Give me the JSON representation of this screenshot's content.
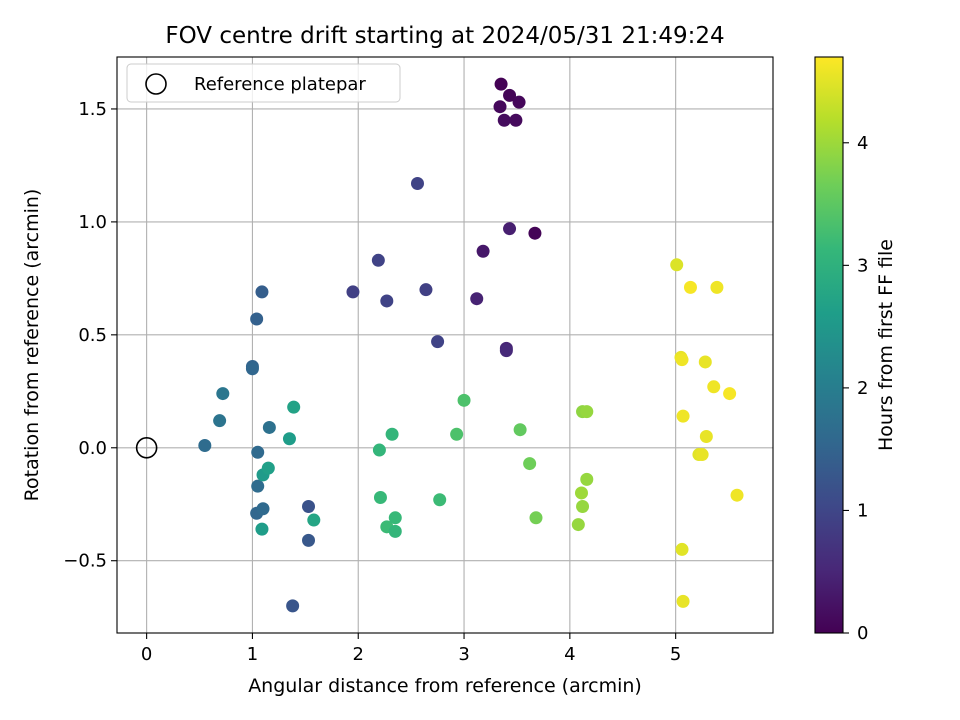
{
  "chart_data": {
    "type": "scatter",
    "title": "FOV centre drift starting at 2024/05/31 21:49:24",
    "xlabel": "Angular distance from reference (arcmin)",
    "ylabel": "Rotation from reference (arcmin)",
    "xlim": [
      -0.28,
      5.92
    ],
    "ylim": [
      -0.82,
      1.73
    ],
    "xticks": [
      0,
      1,
      2,
      3,
      4,
      5
    ],
    "yticks": [
      -0.5,
      0.0,
      0.5,
      1.0,
      1.5
    ],
    "ytick_labels": [
      "−0.5",
      "0.0",
      "0.5",
      "1.0",
      "1.5"
    ],
    "grid": true,
    "legend": {
      "placement": "top-left",
      "label": "Reference platepar"
    },
    "reference_point": {
      "x": 0,
      "y": 0
    },
    "colorbar": {
      "label": "Hours from first FF file",
      "colormap": "viridis",
      "range": [
        0,
        4.7
      ],
      "ticks": [
        0,
        1,
        2,
        3,
        4
      ]
    },
    "colormap_stops": [
      "#440154",
      "#482878",
      "#3e4989",
      "#31688e",
      "#26828e",
      "#1f9e89",
      "#35b779",
      "#6ece58",
      "#b5de2b",
      "#fde725"
    ],
    "points": [
      {
        "x": 3.35,
        "y": 1.61,
        "t": 0.02
      },
      {
        "x": 3.43,
        "y": 1.56,
        "t": 0.05
      },
      {
        "x": 3.52,
        "y": 1.53,
        "t": 0.08
      },
      {
        "x": 3.34,
        "y": 1.51,
        "t": 0.1
      },
      {
        "x": 3.38,
        "y": 1.45,
        "t": 0.15
      },
      {
        "x": 3.49,
        "y": 1.45,
        "t": 0.12
      },
      {
        "x": 3.67,
        "y": 0.95,
        "t": 0.05
      },
      {
        "x": 3.43,
        "y": 0.97,
        "t": 0.4
      },
      {
        "x": 3.18,
        "y": 0.87,
        "t": 0.3
      },
      {
        "x": 3.12,
        "y": 0.66,
        "t": 0.45
      },
      {
        "x": 3.4,
        "y": 0.44,
        "t": 0.5
      },
      {
        "x": 3.4,
        "y": 0.43,
        "t": 0.55
      },
      {
        "x": 2.56,
        "y": 1.17,
        "t": 0.95
      },
      {
        "x": 2.19,
        "y": 0.83,
        "t": 0.95
      },
      {
        "x": 1.95,
        "y": 0.69,
        "t": 0.9
      },
      {
        "x": 2.27,
        "y": 0.65,
        "t": 0.95
      },
      {
        "x": 2.64,
        "y": 0.7,
        "t": 0.9
      },
      {
        "x": 2.75,
        "y": 0.47,
        "t": 0.95
      },
      {
        "x": 1.09,
        "y": 0.69,
        "t": 1.4
      },
      {
        "x": 1.04,
        "y": 0.57,
        "t": 1.45
      },
      {
        "x": 1.0,
        "y": 0.36,
        "t": 1.5
      },
      {
        "x": 1.0,
        "y": 0.35,
        "t": 1.55
      },
      {
        "x": 0.72,
        "y": 0.24,
        "t": 1.85
      },
      {
        "x": 0.69,
        "y": 0.12,
        "t": 1.8
      },
      {
        "x": 1.16,
        "y": 0.09,
        "t": 1.75
      },
      {
        "x": 0.55,
        "y": 0.01,
        "t": 1.65
      },
      {
        "x": 1.05,
        "y": -0.02,
        "t": 1.6
      },
      {
        "x": 1.05,
        "y": -0.17,
        "t": 1.65
      },
      {
        "x": 1.04,
        "y": -0.29,
        "t": 1.55
      },
      {
        "x": 1.1,
        "y": -0.27,
        "t": 1.6
      },
      {
        "x": 1.53,
        "y": -0.26,
        "t": 1.2
      },
      {
        "x": 1.53,
        "y": -0.41,
        "t": 1.3
      },
      {
        "x": 1.38,
        "y": -0.7,
        "t": 1.25
      },
      {
        "x": 1.1,
        "y": -0.12,
        "t": 2.55
      },
      {
        "x": 1.15,
        "y": -0.09,
        "t": 2.65
      },
      {
        "x": 1.09,
        "y": -0.36,
        "t": 2.6
      },
      {
        "x": 1.39,
        "y": 0.18,
        "t": 2.7
      },
      {
        "x": 1.35,
        "y": 0.04,
        "t": 2.6
      },
      {
        "x": 1.58,
        "y": -0.32,
        "t": 2.75
      },
      {
        "x": 2.2,
        "y": -0.01,
        "t": 3.1
      },
      {
        "x": 2.32,
        "y": 0.06,
        "t": 3.1
      },
      {
        "x": 2.21,
        "y": -0.22,
        "t": 3.15
      },
      {
        "x": 2.27,
        "y": -0.35,
        "t": 3.2
      },
      {
        "x": 2.35,
        "y": -0.31,
        "t": 3.15
      },
      {
        "x": 2.35,
        "y": -0.37,
        "t": 3.1
      },
      {
        "x": 2.77,
        "y": -0.23,
        "t": 3.2
      },
      {
        "x": 2.93,
        "y": 0.06,
        "t": 3.35
      },
      {
        "x": 3.0,
        "y": 0.21,
        "t": 3.35
      },
      {
        "x": 3.53,
        "y": 0.08,
        "t": 3.55
      },
      {
        "x": 3.62,
        "y": -0.07,
        "t": 3.65
      },
      {
        "x": 3.68,
        "y": -0.31,
        "t": 3.7
      },
      {
        "x": 4.12,
        "y": 0.16,
        "t": 3.9
      },
      {
        "x": 4.16,
        "y": 0.16,
        "t": 3.95
      },
      {
        "x": 4.16,
        "y": -0.14,
        "t": 3.95
      },
      {
        "x": 4.11,
        "y": -0.2,
        "t": 4.0
      },
      {
        "x": 4.12,
        "y": -0.26,
        "t": 3.95
      },
      {
        "x": 4.08,
        "y": -0.34,
        "t": 3.95
      },
      {
        "x": 5.01,
        "y": 0.81,
        "t": 4.45
      },
      {
        "x": 5.14,
        "y": 0.71,
        "t": 4.65
      },
      {
        "x": 5.39,
        "y": 0.71,
        "t": 4.6
      },
      {
        "x": 5.05,
        "y": 0.4,
        "t": 4.55
      },
      {
        "x": 5.06,
        "y": 0.39,
        "t": 4.6
      },
      {
        "x": 5.28,
        "y": 0.38,
        "t": 4.55
      },
      {
        "x": 5.36,
        "y": 0.27,
        "t": 4.6
      },
      {
        "x": 5.51,
        "y": 0.24,
        "t": 4.65
      },
      {
        "x": 5.07,
        "y": 0.14,
        "t": 4.6
      },
      {
        "x": 5.29,
        "y": 0.05,
        "t": 4.55
      },
      {
        "x": 5.22,
        "y": -0.03,
        "t": 4.5
      },
      {
        "x": 5.25,
        "y": -0.03,
        "t": 4.55
      },
      {
        "x": 5.58,
        "y": -0.21,
        "t": 4.6
      },
      {
        "x": 5.06,
        "y": -0.45,
        "t": 4.5
      },
      {
        "x": 5.07,
        "y": -0.68,
        "t": 4.55
      }
    ]
  }
}
